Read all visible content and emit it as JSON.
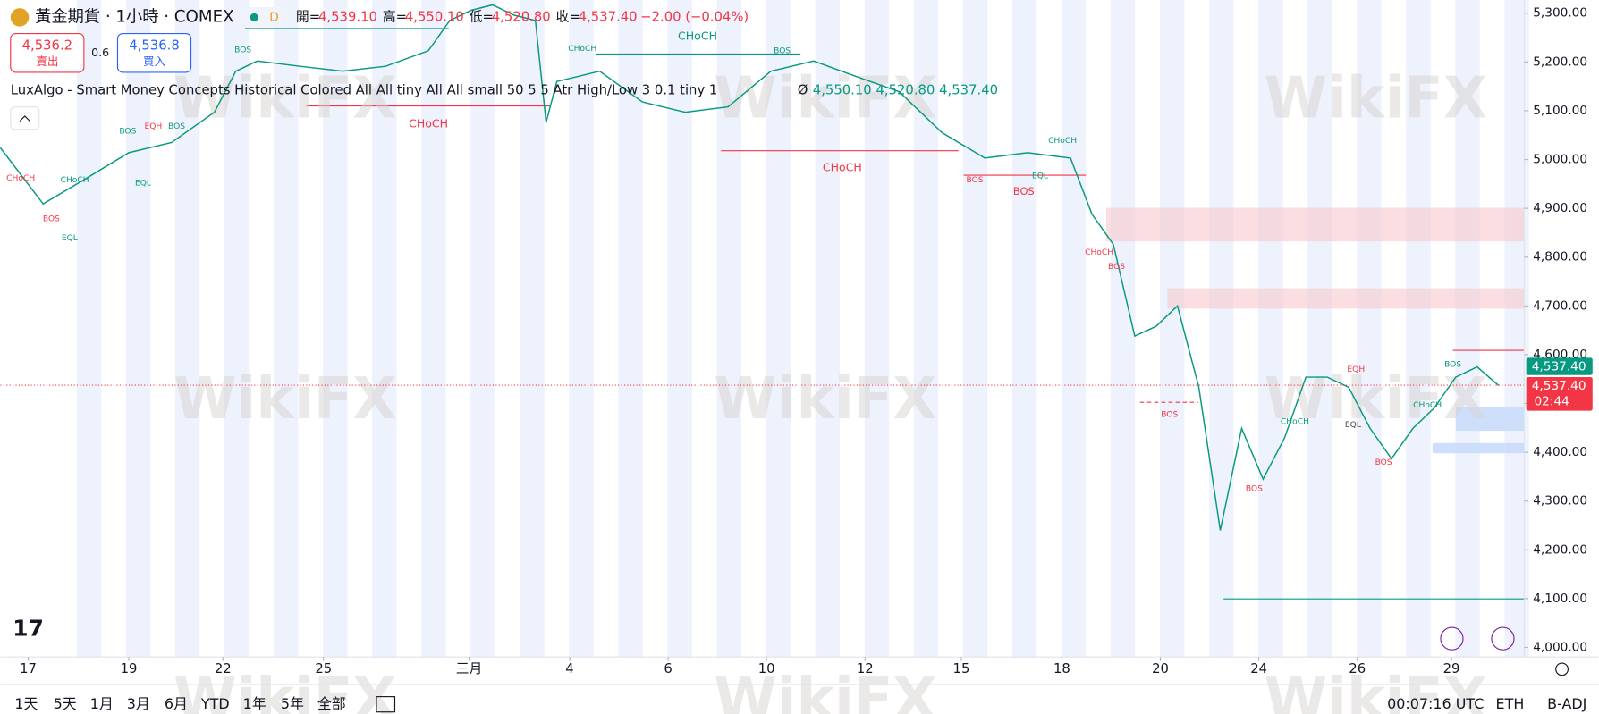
{
  "header": {
    "symbol": "黃金期貨 · 1小時 · COMEX",
    "badge": "D",
    "ohlc": [
      {
        "label": "開=",
        "value": "4,539.10"
      },
      {
        "label": "高=",
        "value": "4,550.10"
      },
      {
        "label": "低=",
        "value": "4,520.80"
      },
      {
        "label": "收=",
        "value": "4,537.40"
      }
    ],
    "change": "−2.00 (−0.04%)"
  },
  "trade": {
    "sell_price": "4,536.2",
    "sell_label": "賣出",
    "spread": "0.6",
    "buy_price": "4,536.8",
    "buy_label": "買入"
  },
  "indicator": {
    "text": "LuxAlgo - Smart Money Concepts Historical Colored All All tiny All All small 50 5 5 Atr High/Low 3 0.1 tiny 1",
    "symbol": "Ø",
    "values": [
      "4,550.10",
      "4,520.80",
      "4,537.40"
    ]
  },
  "chart_data": {
    "type": "line",
    "color": "#089981",
    "x": [
      0,
      20,
      40,
      60,
      80,
      100,
      110,
      120,
      140,
      160,
      180,
      200,
      210,
      220,
      230,
      240,
      250,
      255,
      260,
      280,
      300,
      320,
      340,
      360,
      380,
      400,
      420,
      440,
      460,
      480,
      500,
      510,
      520,
      530,
      540,
      550,
      560,
      570,
      580,
      590,
      600,
      610,
      620,
      630,
      640,
      650,
      660,
      670,
      680,
      690,
      700
    ],
    "values": [
      5024,
      4909,
      4961,
      5014,
      5035,
      5097,
      5181,
      5202,
      5191,
      5181,
      5191,
      5223,
      5285,
      5306,
      5317,
      5296,
      5285,
      5076,
      5160,
      5181,
      5118,
      5097,
      5108,
      5181,
      5202,
      5170,
      5139,
      5055,
      5003,
      5014,
      5003,
      4888,
      4826,
      4638,
      4658,
      4700,
      4533,
      4240,
      4449,
      4345,
      4429,
      4554,
      4554,
      4533,
      4449,
      4387,
      4449,
      4491,
      4554,
      4575,
      4537
    ],
    "xlim": [
      0,
      712
    ],
    "xticks": [
      {
        "value": 13,
        "label": "17"
      },
      {
        "value": 60,
        "label": "19"
      },
      {
        "value": 104,
        "label": "22"
      },
      {
        "value": 151,
        "label": "25"
      },
      {
        "value": 219,
        "label": "三月"
      },
      {
        "value": 266,
        "label": "4"
      },
      {
        "value": 312,
        "label": "6"
      },
      {
        "value": 358,
        "label": "10"
      },
      {
        "value": 404,
        "label": "12"
      },
      {
        "value": 449,
        "label": "15"
      },
      {
        "value": 496,
        "label": "18"
      },
      {
        "value": 542,
        "label": "20"
      },
      {
        "value": 588,
        "label": "24"
      },
      {
        "value": 634,
        "label": "26"
      },
      {
        "value": 678,
        "label": "29"
      }
    ],
    "ylim": [
      3970,
      5327
    ],
    "yticks": [
      {
        "value": 4000,
        "label": "4,000.00"
      },
      {
        "value": 4100,
        "label": "4,100.00"
      },
      {
        "value": 4200,
        "label": "4,200.00"
      },
      {
        "value": 4300,
        "label": "4,300.00"
      },
      {
        "value": 4400,
        "label": "4,400.00"
      },
      {
        "value": 4500,
        "label": "4,500.00"
      },
      {
        "value": 4600,
        "label": "4,600.00"
      },
      {
        "value": 4700,
        "label": "4,700.00"
      },
      {
        "value": 4800,
        "label": "4,800.00"
      },
      {
        "value": 4900,
        "label": "4,900.00"
      },
      {
        "value": 5000,
        "label": "5,000.00"
      },
      {
        "value": 5100,
        "label": "5,100.00"
      },
      {
        "value": 5200,
        "label": "5,200.00"
      },
      {
        "value": 5300,
        "label": "5,300.00"
      }
    ],
    "last_price": {
      "value": 4537.4,
      "label": "4,537.40"
    },
    "countdown": "02:44",
    "annotations": [
      {
        "text": "CHoCH",
        "color": "#089981"
      },
      {
        "text": "CHoCH",
        "color": "#f23645"
      },
      {
        "text": "CHoCH",
        "color": "#f23645"
      },
      {
        "text": "BOS",
        "color": "#f23645"
      },
      {
        "text": "BOS",
        "color": "#089981"
      },
      {
        "text": "EQH",
        "color": "#f23645"
      },
      {
        "text": "BOS",
        "color": "#089981"
      },
      {
        "text": "BOS",
        "color": "#089981"
      },
      {
        "text": "CHoCH",
        "color": "#089981"
      },
      {
        "text": "EQL",
        "color": "#089981"
      },
      {
        "text": "EQL",
        "color": "#089981"
      },
      {
        "text": "BOS",
        "color": "#f23645"
      },
      {
        "text": "CHoCH",
        "color": "#f23645"
      },
      {
        "text": "CHoCH",
        "color": "#089981"
      },
      {
        "text": "BOS",
        "color": "#089981"
      },
      {
        "text": "CHoCH",
        "color": "#089981"
      },
      {
        "text": "EQL",
        "color": "#089981"
      },
      {
        "text": "BOS",
        "color": "#f23645"
      },
      {
        "text": "CHoCH",
        "color": "#f23645"
      },
      {
        "text": "BOS",
        "color": "#f23645"
      },
      {
        "text": "BOS",
        "color": "#f23645"
      },
      {
        "text": "CHoCH",
        "color": "#089981"
      },
      {
        "text": "EQL",
        "color": "#434651"
      },
      {
        "text": "EQH",
        "color": "#f23645"
      },
      {
        "text": "BOS",
        "color": "#f23645"
      },
      {
        "text": "CHoCH",
        "color": "#089981"
      },
      {
        "text": "BOS",
        "color": "#089981"
      },
      {
        "text": "BOS",
        "color": "#f23645"
      }
    ]
  },
  "watermark": "WikiFX",
  "toolbar": {
    "ranges": [
      "1天",
      "5天",
      "1月",
      "3月",
      "6月",
      "YTD",
      "1年",
      "5年",
      "全部"
    ],
    "clock": "00:07:16 UTC",
    "session": "ETH",
    "adjust": "B-ADJ"
  }
}
